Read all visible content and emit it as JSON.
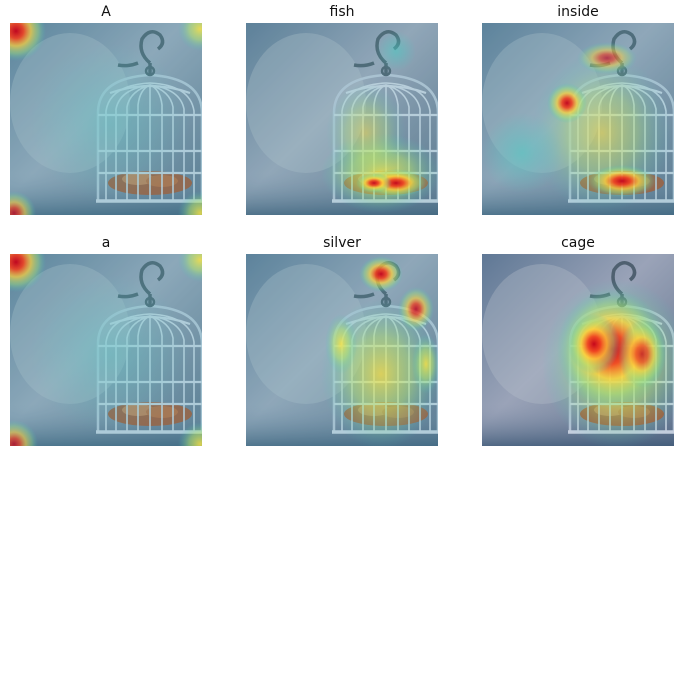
{
  "panels": [
    {
      "title": "A",
      "heat": "corners"
    },
    {
      "title": "fish",
      "heat": "fish-bottom"
    },
    {
      "title": "inside",
      "heat": "inside"
    },
    {
      "title": "a",
      "heat": "corners"
    },
    {
      "title": "silver",
      "heat": "silver"
    },
    {
      "title": "cage",
      "heat": "cage-body"
    }
  ],
  "colors": {
    "background": "#7f8aa6",
    "cage_metal": "#c9d3e2",
    "fish": "#a0573a",
    "heat_hot": "#d7191c",
    "heat_warm": "#fdae61",
    "heat_mid": "#ffff66",
    "heat_cool": "#43c6c0"
  }
}
